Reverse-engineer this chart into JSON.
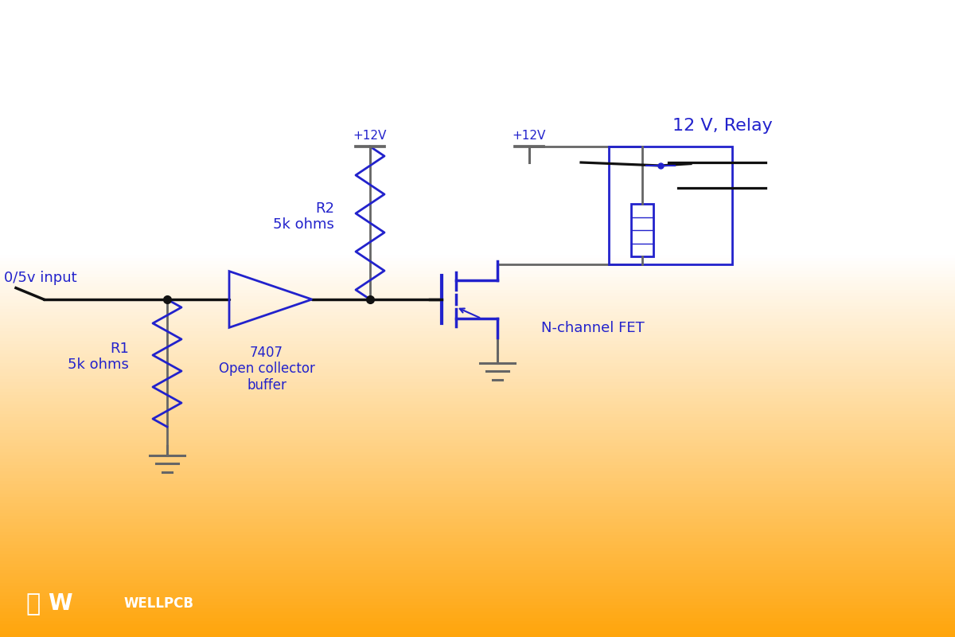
{
  "bg_top_color": "#ffffff",
  "bg_bottom_color": "#f5a623",
  "circuit_color": "#2222cc",
  "wire_color": "#666666",
  "wire_color_dark": "#111111",
  "title": "12 V, Relay",
  "label_input": "0/5v input",
  "label_R1_line1": "R1",
  "label_R1_line2": "5k ohms",
  "label_R2_line1": "R2",
  "label_R2_line2": "5k ohms",
  "label_7407_line1": "7407",
  "label_7407_line2": "Open collector",
  "label_7407_line3": "buffer",
  "label_fet": "N-channel FET",
  "label_v12a": "+12V",
  "label_v12b": "+12V",
  "label_relay": "12 V, Relay",
  "logo_text": "WELLPCB",
  "font_size_labels": 13,
  "font_size_title": 16
}
